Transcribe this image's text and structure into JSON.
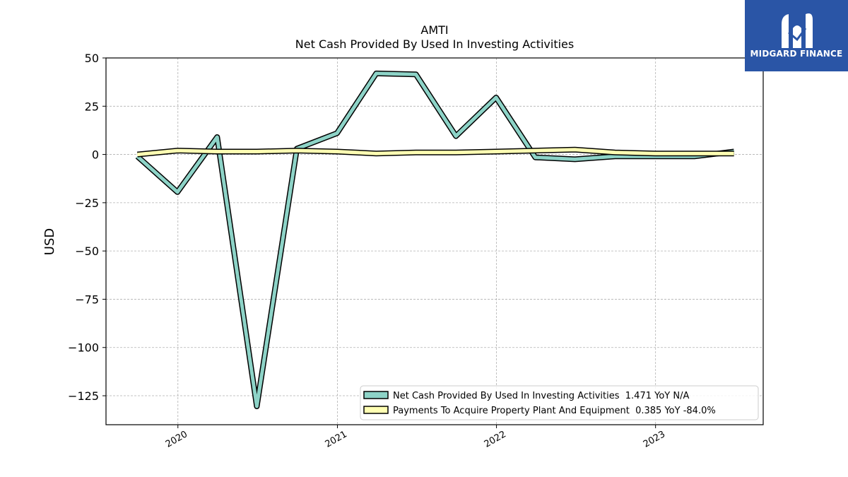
{
  "brand": {
    "name": "MIDGARD FINANCE",
    "bg_color": "#2a55a6"
  },
  "chart_data": {
    "type": "line",
    "title": "AMTI",
    "subtitle": "Net Cash Provided By Used In Investing Activities",
    "xlabel": "",
    "ylabel": "USD",
    "x_ticks": [
      "2020",
      "2021",
      "2022",
      "2023"
    ],
    "y_ticks": [
      50,
      25,
      0,
      -25,
      -50,
      -75,
      -100,
      -125
    ],
    "ylim": [
      -140,
      50
    ],
    "xlim": [
      "2019-07-20",
      "2023-09-05"
    ],
    "grid": true,
    "legend_position": "bottom-right",
    "x": [
      "2019-09-30",
      "2019-12-31",
      "2020-03-31",
      "2020-06-30",
      "2020-09-30",
      "2020-12-31",
      "2021-03-31",
      "2021-06-30",
      "2021-09-30",
      "2021-12-31",
      "2022-03-31",
      "2022-06-30",
      "2022-09-30",
      "2022-12-31",
      "2023-03-31",
      "2023-06-30"
    ],
    "series": [
      {
        "name": "Net Cash Provided By Used In Investing Activities",
        "legend_label": "Net Cash Provided By Used In Investing Activities  1.471 YoY N/A",
        "color": "#8dd3c7",
        "values": [
          -1.0,
          -19.5,
          9.0,
          -130.5,
          3.0,
          11.0,
          42.0,
          41.5,
          9.5,
          29.5,
          -1.5,
          -2.5,
          -1.0,
          -1.0,
          -1.0,
          1.5
        ]
      },
      {
        "name": "Payments To Acquire Property Plant And Equipment",
        "legend_label": "Payments To Acquire Property Plant And Equipment  0.385 YoY -84.0%",
        "color": "#ffffb3",
        "values": [
          0.0,
          2.0,
          1.5,
          1.5,
          2.0,
          1.5,
          0.5,
          1.0,
          1.0,
          1.5,
          2.0,
          2.5,
          1.0,
          0.5,
          0.5,
          0.5
        ]
      }
    ]
  }
}
